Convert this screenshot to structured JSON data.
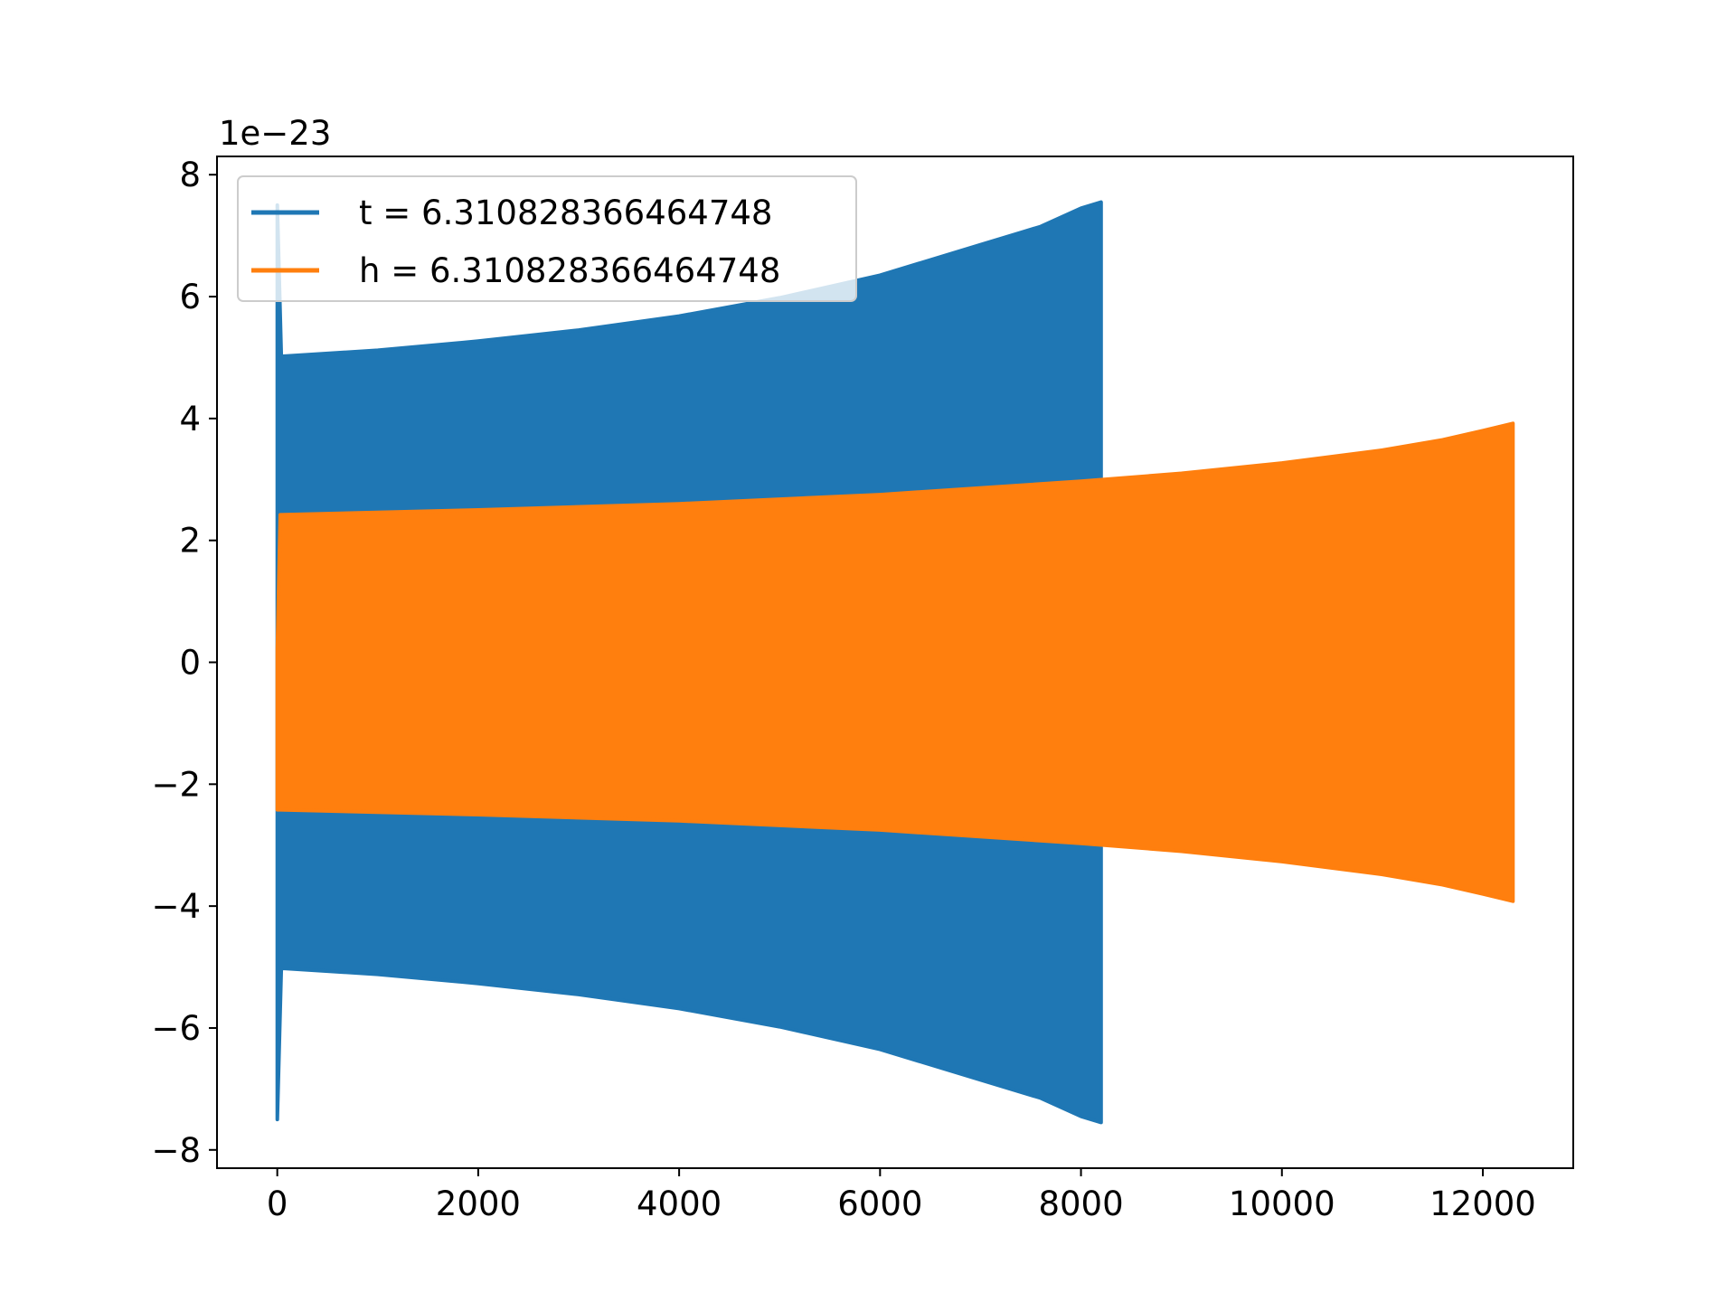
{
  "chart_data": {
    "type": "area",
    "title": "",
    "xlabel": "",
    "ylabel": "",
    "offset_text": "1e−23",
    "xlim": [
      -600,
      12900
    ],
    "ylim": [
      -8.3,
      8.3
    ],
    "x_ticks": [
      0,
      2000,
      4000,
      6000,
      8000,
      10000,
      12000
    ],
    "x_tick_labels": [
      "0",
      "2000",
      "4000",
      "6000",
      "8000",
      "10000",
      "12000"
    ],
    "y_ticks": [
      -8,
      -6,
      -4,
      -2,
      0,
      2,
      4,
      6,
      8
    ],
    "y_tick_labels": [
      "−8",
      "−6",
      "−4",
      "−2",
      "0",
      "2",
      "4",
      "6",
      "8"
    ],
    "grid": false,
    "legend": "upper-left",
    "series": [
      {
        "name": "t = 6.310828366464748",
        "color": "#1f77b4",
        "x": [
          0,
          40,
          1000,
          2000,
          3000,
          4000,
          5000,
          6000,
          7000,
          7600,
          8000,
          8200
        ],
        "upper": [
          7.5,
          5.02,
          5.12,
          5.27,
          5.45,
          5.68,
          5.98,
          6.35,
          6.85,
          7.15,
          7.45,
          7.55
        ],
        "lower": [
          -7.5,
          -5.02,
          -5.12,
          -5.27,
          -5.45,
          -5.68,
          -5.98,
          -6.35,
          -6.85,
          -7.15,
          -7.45,
          -7.55
        ]
      },
      {
        "name": "h = 6.310828366464748",
        "color": "#ff7f0e",
        "x": [
          0,
          30,
          2000,
          4000,
          6000,
          8000,
          9000,
          10000,
          11000,
          11600,
          12000,
          12300
        ],
        "upper": [
          0.2,
          2.42,
          2.5,
          2.6,
          2.75,
          2.97,
          3.1,
          3.27,
          3.48,
          3.65,
          3.8,
          3.92
        ],
        "lower": [
          -2.42,
          -2.42,
          -2.5,
          -2.6,
          -2.75,
          -2.97,
          -3.1,
          -3.27,
          -3.48,
          -3.65,
          -3.8,
          -3.92
        ]
      }
    ]
  }
}
